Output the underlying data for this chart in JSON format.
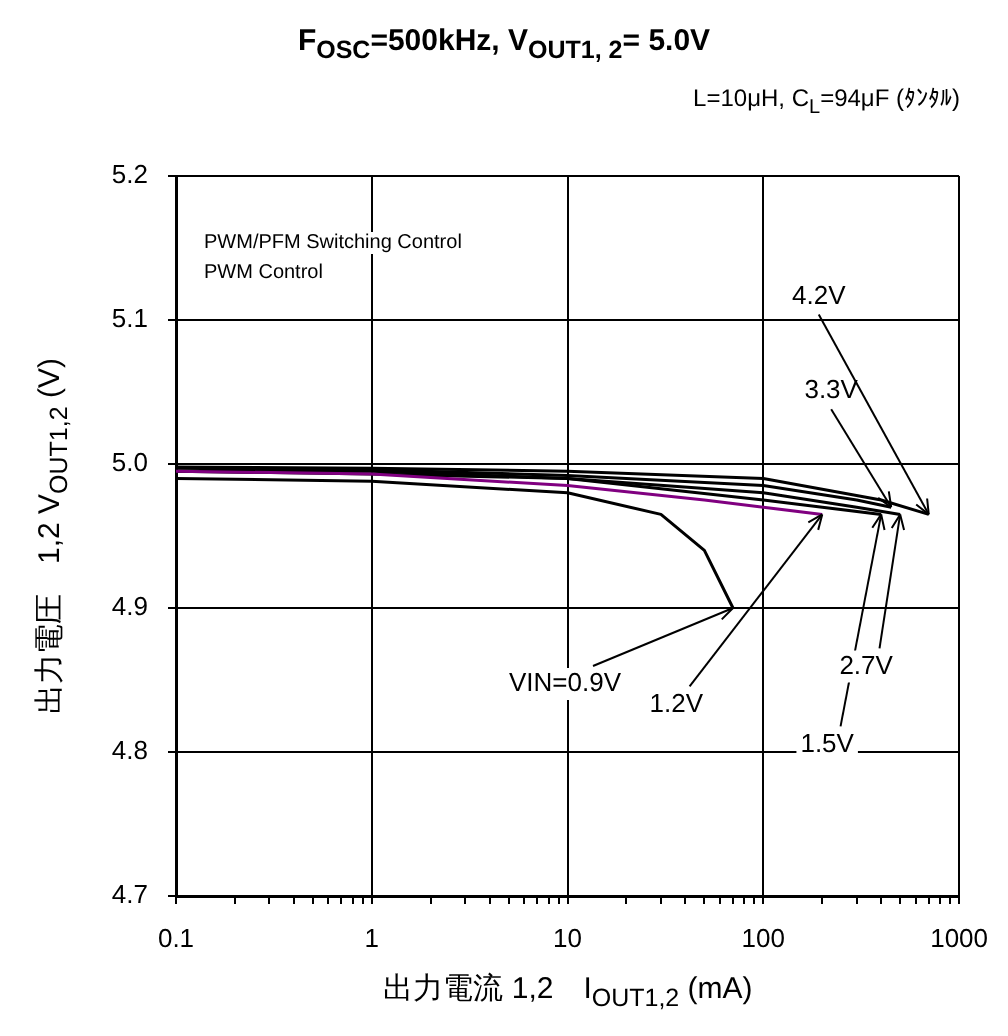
{
  "chart_data": {
    "type": "line",
    "title": "F$_{OSC}$=500kHz, V$_{OUT1, 2}$= 5.0V",
    "subtitle": "L=10μH, C$_{L}$=94μF (ﾀﾝﾀﾙ)",
    "xlabel": "出力電流 1,2　I$_{OUT1,2}$ (mA)",
    "ylabel": "出力電圧　1,2 V$_{OUT1,2}$ (V)",
    "log": "x",
    "grid": true,
    "legend": false,
    "marker": "none",
    "line_style": "solid",
    "xlim": [
      0.1,
      1000
    ],
    "ylim": [
      4.7,
      5.2
    ],
    "xticks": [
      0.1,
      {
        "value": 0.2,
        "label": null
      },
      {
        "value": 0.3,
        "label": null
      },
      {
        "value": 0.4,
        "label": null
      },
      {
        "value": 0.5,
        "label": null
      },
      {
        "value": 0.6,
        "label": null
      },
      {
        "value": 0.7,
        "label": null
      },
      {
        "value": 0.8,
        "label": null
      },
      {
        "value": 0.9,
        "label": null
      },
      1,
      {
        "value": 2,
        "label": null
      },
      {
        "value": 3,
        "label": null
      },
      {
        "value": 4,
        "label": null
      },
      {
        "value": 5,
        "label": null
      },
      {
        "value": 6,
        "label": null
      },
      {
        "value": 7,
        "label": null
      },
      {
        "value": 8,
        "label": null
      },
      {
        "value": 9,
        "label": null
      },
      10,
      {
        "value": 20,
        "label": null
      },
      {
        "value": 30,
        "label": null
      },
      {
        "value": 40,
        "label": null
      },
      {
        "value": 50,
        "label": null
      },
      {
        "value": 60,
        "label": null
      },
      {
        "value": 70,
        "label": null
      },
      {
        "value": 80,
        "label": null
      },
      {
        "value": 90,
        "label": null
      },
      100,
      {
        "value": 200,
        "label": null
      },
      {
        "value": 300,
        "label": null
      },
      {
        "value": 400,
        "label": null
      },
      {
        "value": 500,
        "label": null
      },
      {
        "value": 600,
        "label": null
      },
      {
        "value": 700,
        "label": null
      },
      {
        "value": 800,
        "label": null
      },
      {
        "value": 900,
        "label": null
      },
      1000
    ],
    "yticks": [
      4.7,
      4.8,
      4.9,
      {
        "value": 5,
        "label": "5.0"
      },
      5.1,
      5.2
    ],
    "series": [
      {
        "color": "#000000",
        "x": [
          0.1,
          1,
          10,
          30,
          50,
          70
        ],
        "values": [
          4.99,
          4.988,
          4.98,
          4.965,
          4.94,
          4.9
        ]
      },
      {
        "color": "#800080",
        "x": [
          0.1,
          1,
          10,
          50,
          100,
          200
        ],
        "values": [
          4.995,
          4.993,
          4.985,
          4.975,
          4.97,
          4.965
        ]
      },
      {
        "color": "#000000",
        "x": [
          0.1,
          1,
          10,
          100,
          200,
          400
        ],
        "values": [
          4.995,
          4.993,
          4.99,
          4.975,
          4.97,
          4.965
        ]
      },
      {
        "color": "#000000",
        "x": [
          0.1,
          1,
          10,
          100,
          300,
          500
        ],
        "values": [
          4.995,
          4.995,
          4.99,
          4.98,
          4.97,
          4.965
        ]
      },
      {
        "color": "#000000",
        "x": [
          0.1,
          1,
          10,
          100,
          300,
          450
        ],
        "values": [
          4.997,
          4.996,
          4.992,
          4.985,
          4.975,
          4.97
        ]
      },
      {
        "color": "#000000",
        "x": [
          0.1,
          1,
          10,
          100,
          400,
          700
        ],
        "values": [
          4.998,
          4.997,
          4.995,
          4.99,
          4.975,
          4.965
        ]
      }
    ],
    "annotations": [
      "PWM/PFM Switching Control",
      "PWM  Control",
      {
        "text": "VIN=0.9V",
        "x": 70,
        "y": 4.9
      },
      {
        "text": "1.2V",
        "x": 200,
        "y": 4.965
      },
      {
        "text": "1.5V",
        "x": 400,
        "y": 4.965
      },
      {
        "text": "2.7V",
        "x": 500,
        "y": 4.965
      },
      {
        "text": "3.3V",
        "x": 450,
        "y": 4.97
      },
      {
        "text": "4.2V",
        "x": 700,
        "y": 4.965
      }
    ]
  }
}
